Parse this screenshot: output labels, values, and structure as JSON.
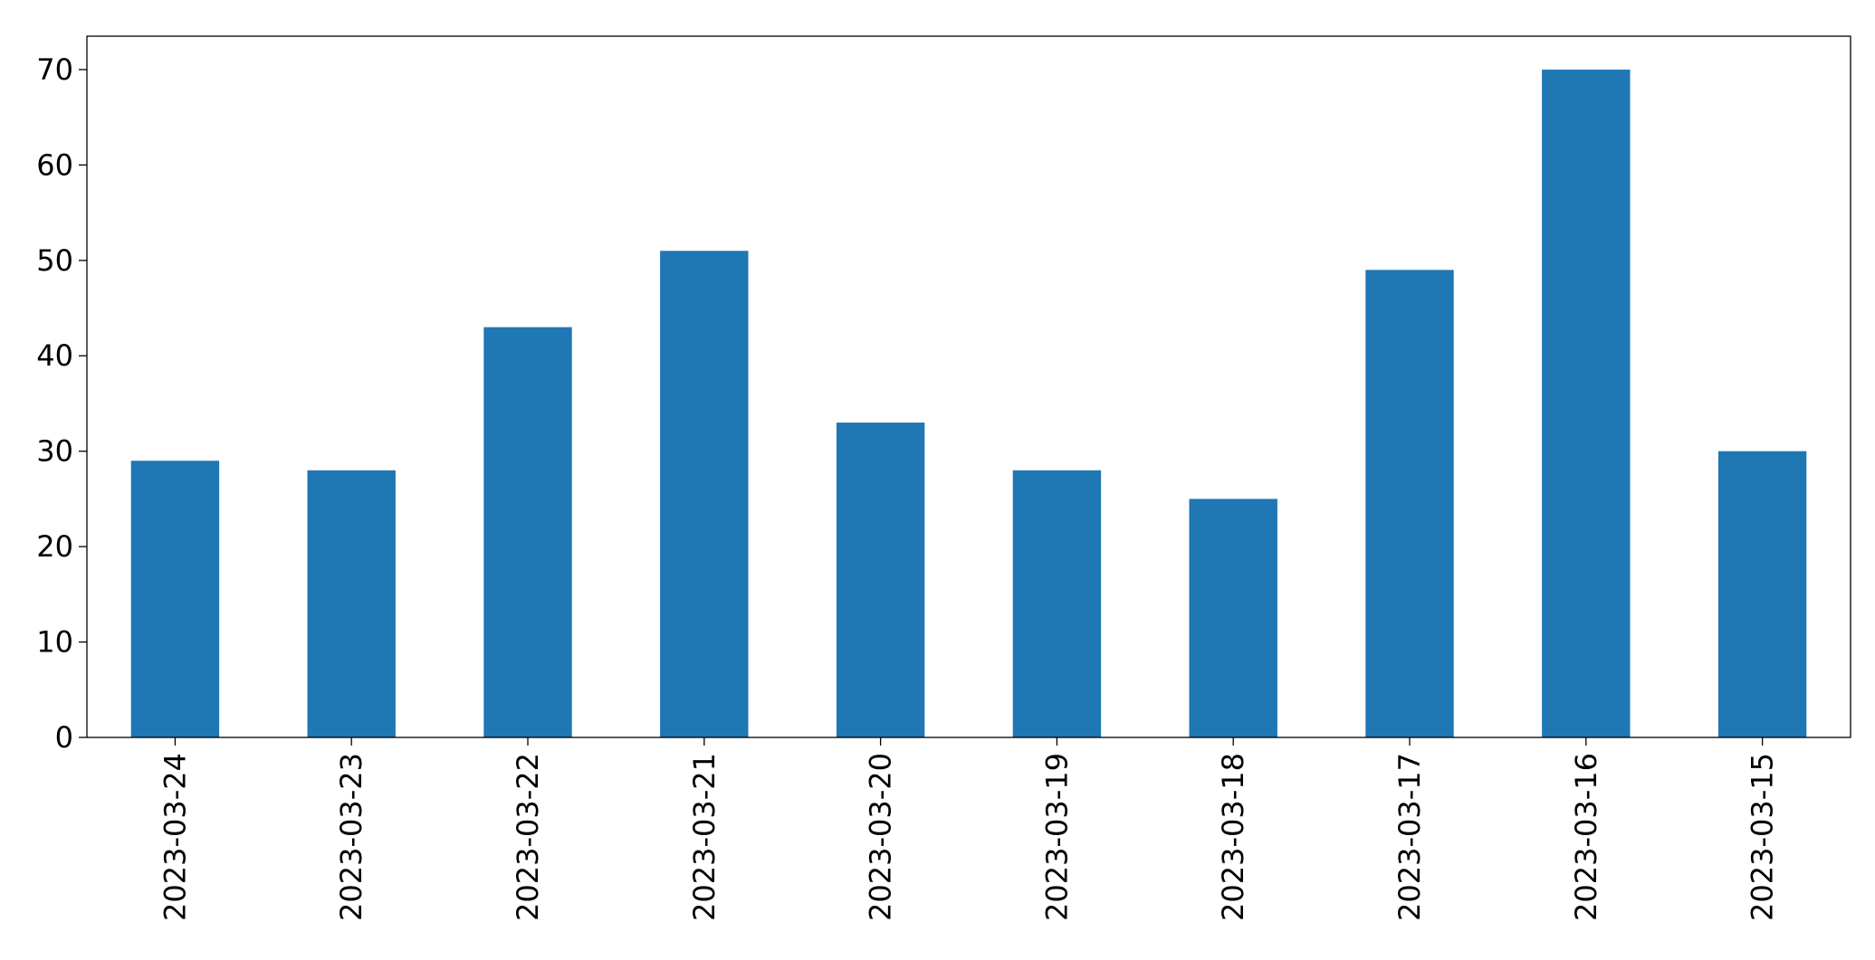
{
  "chart_data": {
    "type": "bar",
    "title": "",
    "xlabel": "",
    "ylabel": "",
    "categories": [
      "2023-03-24",
      "2023-03-23",
      "2023-03-22",
      "2023-03-21",
      "2023-03-20",
      "2023-03-19",
      "2023-03-18",
      "2023-03-17",
      "2023-03-16",
      "2023-03-15"
    ],
    "values": [
      29,
      28,
      43,
      51,
      33,
      28,
      25,
      49,
      70,
      30
    ],
    "ylim": [
      0,
      73.5
    ],
    "yticks": [
      0,
      10,
      20,
      30,
      40,
      50,
      60,
      70
    ],
    "bar_color": "#1f77b4",
    "grid": false,
    "legend": "none"
  }
}
